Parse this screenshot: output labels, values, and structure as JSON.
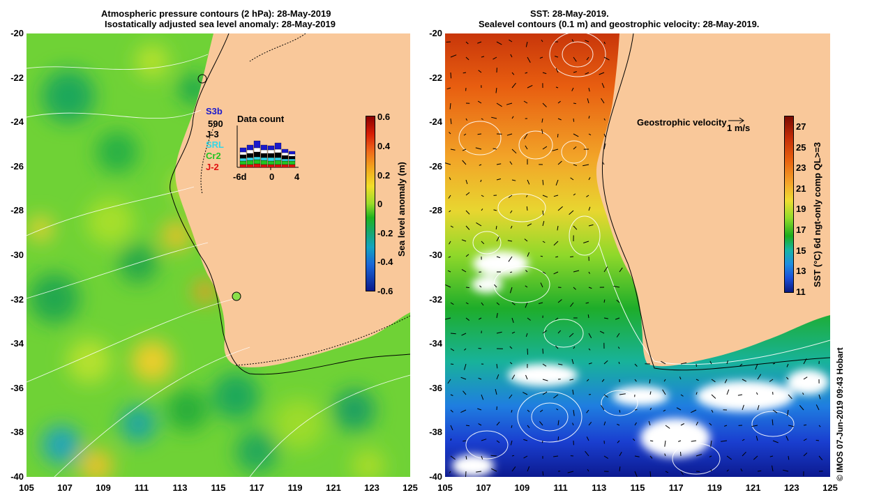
{
  "left_panel": {
    "title_line1": "Atmospheric pressure contours (2 hPa): 28-May-2019",
    "title_line2": "Isostatically adjusted sea level anomaly: 28-May-2019",
    "colorbar_label": "Sea level anomaly (m)",
    "colorbar_ticks": [
      "0.6",
      "0.4",
      "0.2",
      "0",
      "-0.2",
      "-0.4",
      "-0.6"
    ],
    "legend": {
      "satellites": [
        {
          "name": "S3b",
          "color": "#1a1acc"
        },
        {
          "name": "590",
          "color": "#000000"
        },
        {
          "name": "J-3",
          "color": "#000000"
        },
        {
          "name": "SRL",
          "color": "#33d6e6"
        },
        {
          "name": "Cr2",
          "color": "#22c422"
        },
        {
          "name": "J-2",
          "color": "#e01010"
        }
      ],
      "data_count_title": "Data count",
      "data_count_axis": [
        "-6d",
        "0",
        "4"
      ]
    }
  },
  "right_panel": {
    "title_line1": "SST: 28-May-2019.",
    "title_line2": "Sealevel contours (0.1 m) and geostrophic velocity: 28-May-2019.",
    "colorbar_label": "SST (°C) 6d ngt-only comp QL>=3",
    "colorbar_ticks": [
      "27",
      "25",
      "23",
      "21",
      "19",
      "17",
      "15",
      "13",
      "11"
    ],
    "velocity_label": "Geostrophic velocity",
    "velocity_scale": "1 m/s",
    "credit": "© IMOS 07-Jun-2019 09:43 Hobart"
  },
  "axes": {
    "y_ticks": [
      "-20",
      "-22",
      "-24",
      "-26",
      "-28",
      "-30",
      "-32",
      "-34",
      "-36",
      "-38",
      "-40"
    ],
    "x_ticks": [
      "105",
      "107",
      "109",
      "111",
      "113",
      "115",
      "117",
      "119",
      "121",
      "123",
      "125"
    ]
  },
  "colors": {
    "land": "#f9c89a",
    "ocean_base": "#55cc30",
    "sst_warm": "#e8560f",
    "sst_cold": "#1133cc"
  }
}
